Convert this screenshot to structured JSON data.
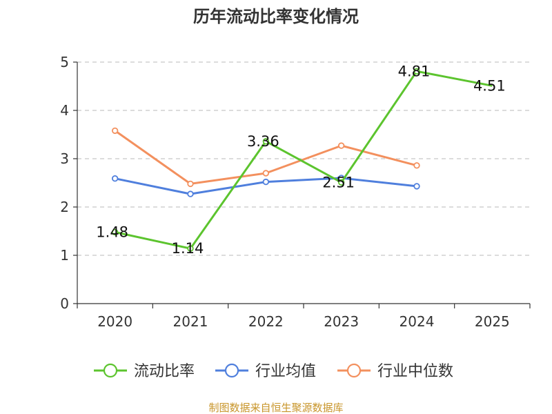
{
  "chart_data": {
    "type": "line",
    "title": "历年流动比率变化情况",
    "categories": [
      "2020",
      "2021",
      "2022",
      "2023",
      "2024",
      "2025"
    ],
    "ylim": [
      0,
      5
    ],
    "yticks": [
      0,
      1,
      2,
      3,
      4,
      5
    ],
    "grid": true,
    "legend_position": "bottom",
    "series": [
      {
        "name": "流动比率",
        "color": "#5cc42e",
        "values": [
          1.48,
          1.14,
          3.36,
          2.51,
          4.81,
          4.51
        ],
        "labels": [
          "1.48",
          "1.14",
          "3.36",
          "2.51",
          "4.81",
          "4.51"
        ],
        "show_markers": [
          true,
          true,
          true,
          true,
          true,
          false
        ]
      },
      {
        "name": "行业均值",
        "color": "#4f7fdd",
        "values": [
          2.59,
          2.27,
          2.52,
          2.6,
          2.43,
          null
        ]
      },
      {
        "name": "行业中位数",
        "color": "#f3905e",
        "values": [
          3.58,
          2.48,
          2.7,
          3.27,
          2.86,
          null
        ]
      }
    ],
    "source": "制图数据来自恒生聚源数据库",
    "source_color": "#c8952a"
  }
}
